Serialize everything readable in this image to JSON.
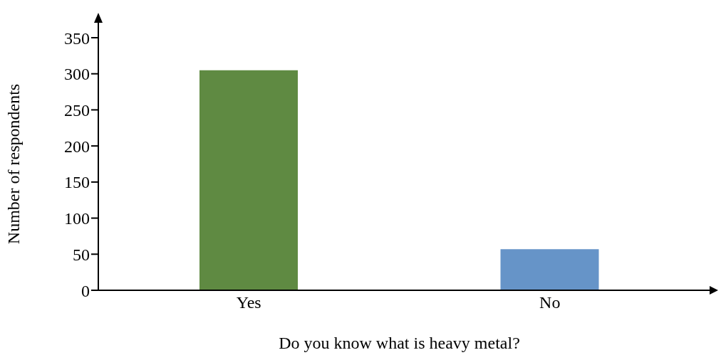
{
  "chart_data": {
    "type": "bar",
    "categories": [
      "Yes",
      "No"
    ],
    "values": [
      305,
      57
    ],
    "colors": [
      "#5f8a42",
      "#6694c8"
    ],
    "xlabel": "Do you know what is heavy metal?",
    "ylabel": "Number of respondents",
    "ylim": [
      0,
      350
    ],
    "yticks": [
      0,
      50,
      100,
      150,
      200,
      250,
      300,
      350
    ],
    "grid": false,
    "legend": false
  }
}
